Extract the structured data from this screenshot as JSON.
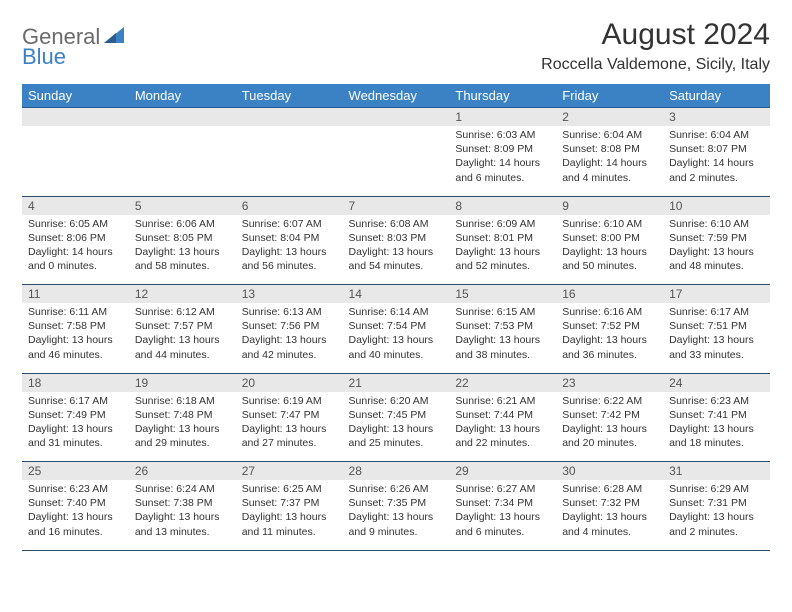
{
  "logo": {
    "text1": "General",
    "text2": "Blue",
    "icon_color": "#3b82c4"
  },
  "title": "August 2024",
  "location": "Roccella Valdemone, Sicily, Italy",
  "colors": {
    "header_bg": "#3b82c4",
    "header_text": "#ffffff",
    "daynum_bg": "#e8e8e8",
    "cell_border": "#2a4d6e",
    "body_text": "#333333"
  },
  "day_headers": [
    "Sunday",
    "Monday",
    "Tuesday",
    "Wednesday",
    "Thursday",
    "Friday",
    "Saturday"
  ],
  "weeks": [
    [
      {
        "n": "",
        "sr": "",
        "ss": "",
        "dl": ""
      },
      {
        "n": "",
        "sr": "",
        "ss": "",
        "dl": ""
      },
      {
        "n": "",
        "sr": "",
        "ss": "",
        "dl": ""
      },
      {
        "n": "",
        "sr": "",
        "ss": "",
        "dl": ""
      },
      {
        "n": "1",
        "sr": "Sunrise: 6:03 AM",
        "ss": "Sunset: 8:09 PM",
        "dl": "Daylight: 14 hours and 6 minutes."
      },
      {
        "n": "2",
        "sr": "Sunrise: 6:04 AM",
        "ss": "Sunset: 8:08 PM",
        "dl": "Daylight: 14 hours and 4 minutes."
      },
      {
        "n": "3",
        "sr": "Sunrise: 6:04 AM",
        "ss": "Sunset: 8:07 PM",
        "dl": "Daylight: 14 hours and 2 minutes."
      }
    ],
    [
      {
        "n": "4",
        "sr": "Sunrise: 6:05 AM",
        "ss": "Sunset: 8:06 PM",
        "dl": "Daylight: 14 hours and 0 minutes."
      },
      {
        "n": "5",
        "sr": "Sunrise: 6:06 AM",
        "ss": "Sunset: 8:05 PM",
        "dl": "Daylight: 13 hours and 58 minutes."
      },
      {
        "n": "6",
        "sr": "Sunrise: 6:07 AM",
        "ss": "Sunset: 8:04 PM",
        "dl": "Daylight: 13 hours and 56 minutes."
      },
      {
        "n": "7",
        "sr": "Sunrise: 6:08 AM",
        "ss": "Sunset: 8:03 PM",
        "dl": "Daylight: 13 hours and 54 minutes."
      },
      {
        "n": "8",
        "sr": "Sunrise: 6:09 AM",
        "ss": "Sunset: 8:01 PM",
        "dl": "Daylight: 13 hours and 52 minutes."
      },
      {
        "n": "9",
        "sr": "Sunrise: 6:10 AM",
        "ss": "Sunset: 8:00 PM",
        "dl": "Daylight: 13 hours and 50 minutes."
      },
      {
        "n": "10",
        "sr": "Sunrise: 6:10 AM",
        "ss": "Sunset: 7:59 PM",
        "dl": "Daylight: 13 hours and 48 minutes."
      }
    ],
    [
      {
        "n": "11",
        "sr": "Sunrise: 6:11 AM",
        "ss": "Sunset: 7:58 PM",
        "dl": "Daylight: 13 hours and 46 minutes."
      },
      {
        "n": "12",
        "sr": "Sunrise: 6:12 AM",
        "ss": "Sunset: 7:57 PM",
        "dl": "Daylight: 13 hours and 44 minutes."
      },
      {
        "n": "13",
        "sr": "Sunrise: 6:13 AM",
        "ss": "Sunset: 7:56 PM",
        "dl": "Daylight: 13 hours and 42 minutes."
      },
      {
        "n": "14",
        "sr": "Sunrise: 6:14 AM",
        "ss": "Sunset: 7:54 PM",
        "dl": "Daylight: 13 hours and 40 minutes."
      },
      {
        "n": "15",
        "sr": "Sunrise: 6:15 AM",
        "ss": "Sunset: 7:53 PM",
        "dl": "Daylight: 13 hours and 38 minutes."
      },
      {
        "n": "16",
        "sr": "Sunrise: 6:16 AM",
        "ss": "Sunset: 7:52 PM",
        "dl": "Daylight: 13 hours and 36 minutes."
      },
      {
        "n": "17",
        "sr": "Sunrise: 6:17 AM",
        "ss": "Sunset: 7:51 PM",
        "dl": "Daylight: 13 hours and 33 minutes."
      }
    ],
    [
      {
        "n": "18",
        "sr": "Sunrise: 6:17 AM",
        "ss": "Sunset: 7:49 PM",
        "dl": "Daylight: 13 hours and 31 minutes."
      },
      {
        "n": "19",
        "sr": "Sunrise: 6:18 AM",
        "ss": "Sunset: 7:48 PM",
        "dl": "Daylight: 13 hours and 29 minutes."
      },
      {
        "n": "20",
        "sr": "Sunrise: 6:19 AM",
        "ss": "Sunset: 7:47 PM",
        "dl": "Daylight: 13 hours and 27 minutes."
      },
      {
        "n": "21",
        "sr": "Sunrise: 6:20 AM",
        "ss": "Sunset: 7:45 PM",
        "dl": "Daylight: 13 hours and 25 minutes."
      },
      {
        "n": "22",
        "sr": "Sunrise: 6:21 AM",
        "ss": "Sunset: 7:44 PM",
        "dl": "Daylight: 13 hours and 22 minutes."
      },
      {
        "n": "23",
        "sr": "Sunrise: 6:22 AM",
        "ss": "Sunset: 7:42 PM",
        "dl": "Daylight: 13 hours and 20 minutes."
      },
      {
        "n": "24",
        "sr": "Sunrise: 6:23 AM",
        "ss": "Sunset: 7:41 PM",
        "dl": "Daylight: 13 hours and 18 minutes."
      }
    ],
    [
      {
        "n": "25",
        "sr": "Sunrise: 6:23 AM",
        "ss": "Sunset: 7:40 PM",
        "dl": "Daylight: 13 hours and 16 minutes."
      },
      {
        "n": "26",
        "sr": "Sunrise: 6:24 AM",
        "ss": "Sunset: 7:38 PM",
        "dl": "Daylight: 13 hours and 13 minutes."
      },
      {
        "n": "27",
        "sr": "Sunrise: 6:25 AM",
        "ss": "Sunset: 7:37 PM",
        "dl": "Daylight: 13 hours and 11 minutes."
      },
      {
        "n": "28",
        "sr": "Sunrise: 6:26 AM",
        "ss": "Sunset: 7:35 PM",
        "dl": "Daylight: 13 hours and 9 minutes."
      },
      {
        "n": "29",
        "sr": "Sunrise: 6:27 AM",
        "ss": "Sunset: 7:34 PM",
        "dl": "Daylight: 13 hours and 6 minutes."
      },
      {
        "n": "30",
        "sr": "Sunrise: 6:28 AM",
        "ss": "Sunset: 7:32 PM",
        "dl": "Daylight: 13 hours and 4 minutes."
      },
      {
        "n": "31",
        "sr": "Sunrise: 6:29 AM",
        "ss": "Sunset: 7:31 PM",
        "dl": "Daylight: 13 hours and 2 minutes."
      }
    ]
  ]
}
